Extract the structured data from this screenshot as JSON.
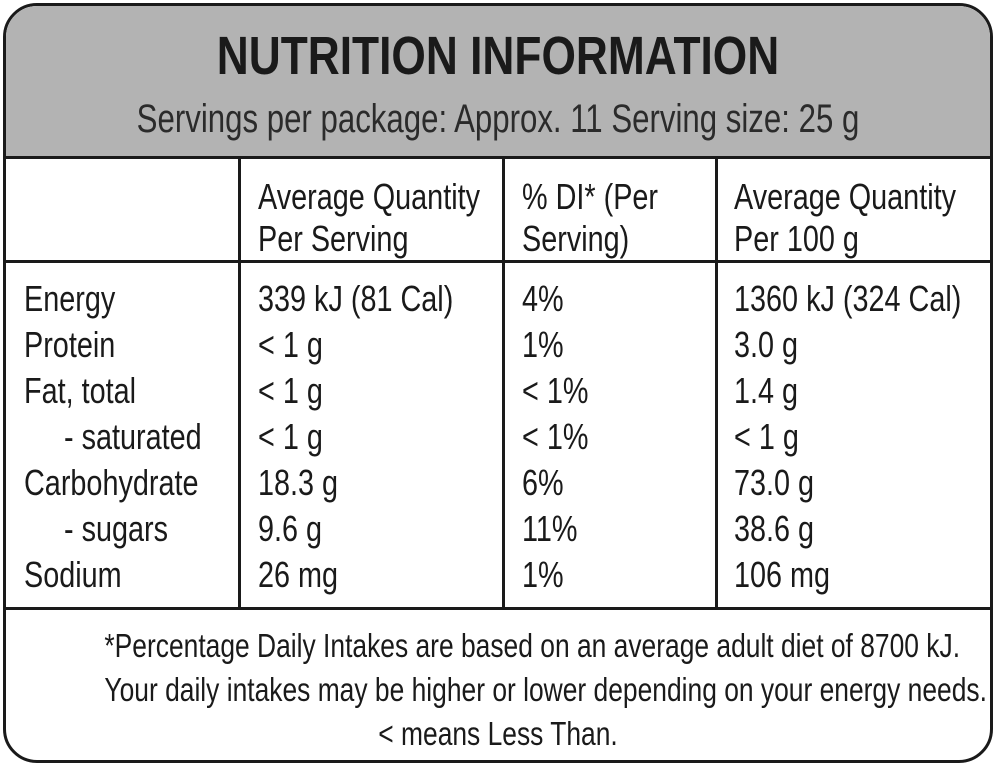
{
  "title": "NUTRITION INFORMATION",
  "subtitle": "Servings per package: Approx. 11  Serving size: 25 g",
  "columns": [
    {
      "line1": "Average Quantity",
      "line2": "Per Serving"
    },
    {
      "line1": "% DI* (Per",
      "line2": "Serving)"
    },
    {
      "line1": "Average Quantity",
      "line2": "Per 100 g"
    }
  ],
  "rows": [
    {
      "label": "Energy",
      "per_serving": "339 kJ (81 Cal)",
      "di": "4%",
      "per_100g": "1360 kJ (324 Cal)"
    },
    {
      "label": "Protein",
      "per_serving": "< 1 g",
      "di": "1%",
      "per_100g": "3.0 g"
    },
    {
      "label": "Fat, total",
      "per_serving": "< 1 g",
      "di": "< 1%",
      "per_100g": "1.4 g"
    },
    {
      "label": "- saturated",
      "per_serving": "< 1 g",
      "di": "< 1%",
      "per_100g": "< 1 g"
    },
    {
      "label": "Carbohydrate",
      "per_serving": "18.3 g",
      "di": "6%",
      "per_100g": "73.0 g"
    },
    {
      "label": "- sugars",
      "per_serving": "9.6 g",
      "di": "11%",
      "per_100g": "38.6 g"
    },
    {
      "label": "Sodium",
      "per_serving": "26 mg",
      "di": "1%",
      "per_100g": "106 mg"
    }
  ],
  "footer": [
    "*Percentage Daily Intakes are based on an average adult diet of 8700 kJ.",
    "Your daily intakes may be higher or lower depending on your energy needs.",
    "< means Less Than."
  ]
}
